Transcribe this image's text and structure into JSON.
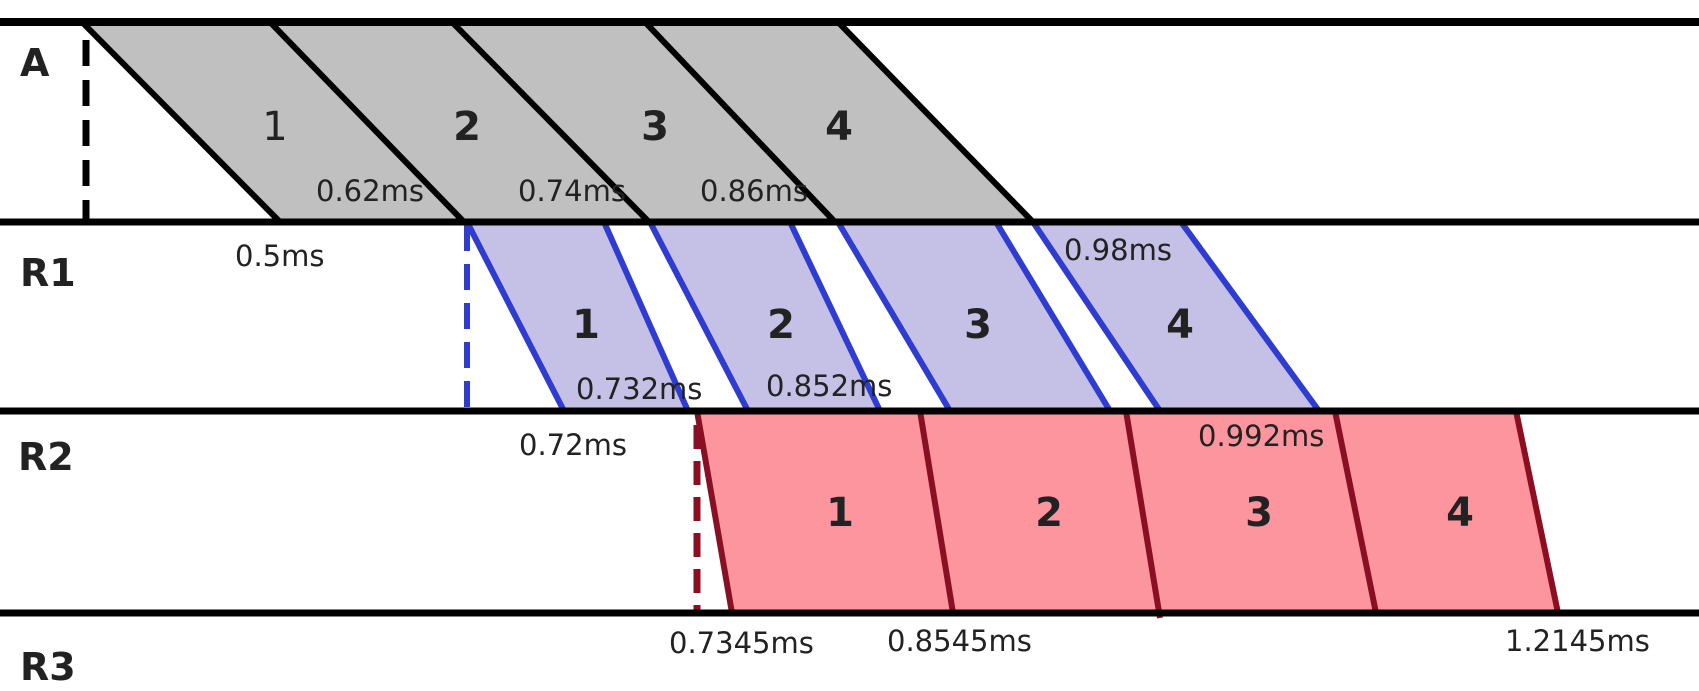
{
  "rows": [
    {
      "label": "A"
    },
    {
      "label": "R1"
    },
    {
      "label": "R2"
    },
    {
      "label": "R3"
    }
  ],
  "colors": {
    "axis": "#000000",
    "a_fill": "#c0c0c0",
    "a_line": "#000000",
    "r1_fill": "#c5c0e6",
    "r1_line": "#2e3ccf",
    "r2_fill": "#fd959f",
    "r2_line": "#8a0f22"
  },
  "stage_a": {
    "segments": [
      "1",
      "2",
      "3",
      "4"
    ]
  },
  "stage_r1": {
    "segments": [
      "1",
      "2",
      "3",
      "4"
    ]
  },
  "stage_r2": {
    "segments": [
      "1",
      "2",
      "3",
      "4"
    ]
  },
  "times": {
    "a_start": "0.5ms",
    "a_1": "0.62ms",
    "a_2": "0.74ms",
    "a_3": "0.86ms",
    "r1_end": "0.98ms",
    "r1_start": "0.72ms",
    "r1_1": "0.732ms",
    "r1_2": "0.852ms",
    "r2_3": "0.992ms",
    "r2_start": "0.7345ms",
    "r2_1": "0.8545ms",
    "r2_end": "1.2145ms"
  }
}
